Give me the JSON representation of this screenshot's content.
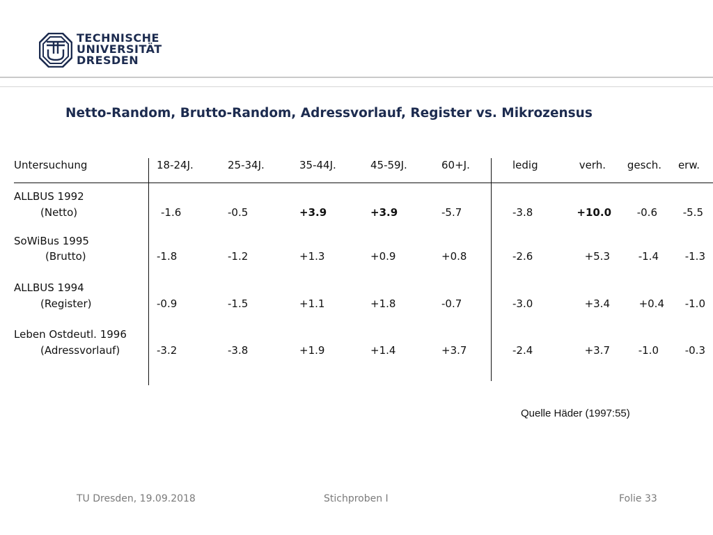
{
  "logo": {
    "lines": [
      "TECHNISCHE",
      "UNIVERSITÄT",
      "DRESDEN"
    ]
  },
  "title": "Netto-Random, Brutto-Random, Adressvorlauf, Register vs. Mikrozensus",
  "table": {
    "headers": [
      "Untersuchung",
      "18-24J.",
      "25-34J.",
      "35-44J.",
      "45-59J.",
      "60+J.",
      "ledig",
      "verh.",
      "gesch.",
      "erw."
    ],
    "rows": [
      {
        "name": "ALLBUS 1992",
        "sub": "(Netto)",
        "values": [
          "-1.6",
          "-0.5",
          "+3.9",
          "+3.9",
          "-5.7",
          "-3.8",
          "+10.0",
          "-0.6",
          "-5.5"
        ]
      },
      {
        "name": "SoWiBus 1995",
        "sub": "(Brutto)",
        "values": [
          "-1.8",
          "-1.2",
          "+1.3",
          "+0.9",
          "+0.8",
          "-2.6",
          "+5.3",
          "-1.4",
          "-1.3"
        ]
      },
      {
        "name": "ALLBUS 1994",
        "sub": "(Register)",
        "values": [
          "-0.9",
          "-1.5",
          "+1.1",
          "+1.8",
          "-0.7",
          "-3.0",
          "+3.4",
          "+0.4",
          "-1.0"
        ]
      },
      {
        "name": "Leben Ostdeutl. 1996",
        "sub": "(Adressvorlauf)",
        "values": [
          "-3.2",
          "-3.8",
          "+1.9",
          "+1.4",
          "+3.7",
          "-2.4",
          "+3.7",
          "-1.0",
          "-0.3"
        ]
      }
    ]
  },
  "source": "Quelle Häder (1997:55)",
  "footer": {
    "left": "TU Dresden, 19.09.2018",
    "center": "Stichproben I",
    "right": "Folie 33"
  },
  "colors": {
    "brand": "#1c2b4f",
    "footer_text": "#7a7a7a",
    "rule": "#c9c9c9"
  }
}
